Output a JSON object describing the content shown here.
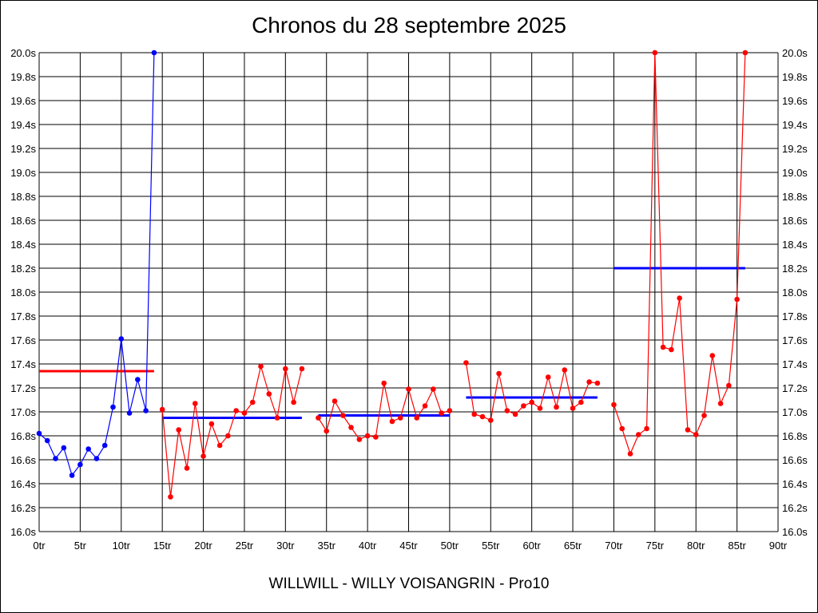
{
  "chart_data": {
    "type": "line",
    "title": "Chronos du 28 septembre 2025",
    "subtitle": "WILLWILL - WILLY VOISANGRIN - Pro10",
    "xlim": [
      0,
      90
    ],
    "ylim": [
      16.0,
      20.0
    ],
    "x_ticks": [
      0,
      5,
      10,
      15,
      20,
      25,
      30,
      35,
      40,
      45,
      50,
      55,
      60,
      65,
      70,
      75,
      80,
      85,
      90
    ],
    "x_tick_labels": [
      "0tr",
      "5tr",
      "10tr",
      "15tr",
      "20tr",
      "25tr",
      "30tr",
      "35tr",
      "40tr",
      "45tr",
      "50tr",
      "55tr",
      "60tr",
      "65tr",
      "70tr",
      "75tr",
      "80tr",
      "85tr",
      "90tr"
    ],
    "y_ticks": [
      16.0,
      16.2,
      16.4,
      16.6,
      16.8,
      17.0,
      17.2,
      17.4,
      17.6,
      17.8,
      18.0,
      18.2,
      18.4,
      18.6,
      18.8,
      19.0,
      19.2,
      19.4,
      19.6,
      19.8,
      20.0
    ],
    "y_tick_labels": [
      "16.0s",
      "16.2s",
      "16.4s",
      "16.6s",
      "16.8s",
      "17.0s",
      "17.2s",
      "17.4s",
      "17.6s",
      "17.8s",
      "18.0s",
      "18.2s",
      "18.4s",
      "18.6s",
      "18.8s",
      "19.0s",
      "19.2s",
      "19.4s",
      "19.6s",
      "19.8s",
      "20.0s"
    ],
    "grid": true,
    "y_axis_both_sides": true,
    "series": [
      {
        "color": "#0000ff",
        "x": [
          0,
          1,
          2,
          3,
          4,
          5,
          6,
          7,
          8,
          9,
          10,
          11,
          12,
          13,
          14
        ],
        "y": [
          16.82,
          16.76,
          16.61,
          16.7,
          16.47,
          16.56,
          16.69,
          16.61,
          16.72,
          17.04,
          17.61,
          16.99,
          17.27,
          17.01,
          20.0
        ]
      },
      {
        "color": "#ff0000",
        "x": [
          15,
          16,
          17,
          18,
          19,
          20,
          21,
          22,
          23,
          24,
          25,
          26,
          27,
          28,
          29,
          30,
          31,
          32
        ],
        "y": [
          17.02,
          16.29,
          16.85,
          16.53,
          17.07,
          16.63,
          16.9,
          16.72,
          16.8,
          17.01,
          16.99,
          17.08,
          17.38,
          17.15,
          16.95,
          17.36,
          17.08,
          17.36
        ]
      },
      {
        "color": "#ff0000",
        "x": [
          34,
          35,
          36,
          37,
          38,
          39,
          40,
          41,
          42,
          43,
          44,
          45,
          46,
          47,
          48,
          49,
          50
        ],
        "y": [
          16.95,
          16.84,
          17.09,
          16.97,
          16.87,
          16.77,
          16.8,
          16.79,
          17.24,
          16.92,
          16.95,
          17.19,
          16.95,
          17.05,
          17.19,
          16.99,
          17.01
        ]
      },
      {
        "color": "#ff0000",
        "x": [
          52,
          53,
          54,
          55,
          56,
          57,
          58,
          59,
          60,
          61,
          62,
          63,
          64,
          65,
          66,
          67,
          68
        ],
        "y": [
          17.41,
          16.98,
          16.96,
          16.93,
          17.32,
          17.01,
          16.98,
          17.05,
          17.08,
          17.03,
          17.29,
          17.04,
          17.35,
          17.03,
          17.08,
          17.25,
          17.24
        ]
      },
      {
        "color": "#ff0000",
        "x": [
          70,
          71,
          72,
          73,
          74,
          75,
          76,
          77,
          78,
          79,
          80,
          81,
          82,
          83,
          84,
          85,
          86
        ],
        "y": [
          17.06,
          16.86,
          16.65,
          16.81,
          16.86,
          20.0,
          17.54,
          17.52,
          17.95,
          16.85,
          16.81,
          16.97,
          17.47,
          17.07,
          17.22,
          17.94,
          20.0
        ]
      }
    ],
    "average_lines": [
      {
        "color": "#ff0000",
        "x": [
          0,
          14
        ],
        "y": 17.34
      },
      {
        "color": "#0000ff",
        "x": [
          15,
          32
        ],
        "y": 16.95
      },
      {
        "color": "#0000ff",
        "x": [
          34,
          50
        ],
        "y": 16.97
      },
      {
        "color": "#0000ff",
        "x": [
          52,
          68
        ],
        "y": 17.12
      },
      {
        "color": "#0000ff",
        "x": [
          70,
          86
        ],
        "y": 18.2
      }
    ]
  }
}
